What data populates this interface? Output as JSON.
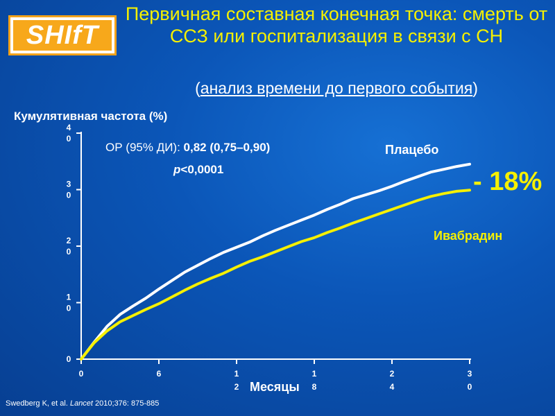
{
  "logo": {
    "text": "SHIfT"
  },
  "title": "Первичная составная конечная точка: смерть от ССЗ или госпитализация в связи с СН",
  "subtitle": {
    "open": "(",
    "text": "анализ времени до первого события",
    "close": ")"
  },
  "annotations": {
    "hr_label": "ОР (95% ДИ): ",
    "hr_value": "0,82 (0,75–0,90)",
    "p_letter": "p",
    "p_rest": "<0,0001",
    "placebo": "Плацебо",
    "ivabradine": "Ивабрадин",
    "reduction": "- 18%"
  },
  "citation": {
    "pre": "Swedberg K, et al. ",
    "journal": "Lancet",
    "post": " 2010;376: 875-885"
  },
  "colors": {
    "placebo": "#ffffff",
    "ivabradine": "#f5f000",
    "title": "#f5f000",
    "background": "#0b56b8"
  },
  "chart_data": {
    "type": "line",
    "xlabel": "Месяцы",
    "ylabel": "Кумулятивная частота (%)",
    "xlim": [
      0,
      30
    ],
    "ylim": [
      0,
      40
    ],
    "x_ticks": [
      0,
      6,
      12,
      18,
      24,
      30
    ],
    "y_ticks": [
      0,
      10,
      20,
      30,
      40
    ],
    "x_tick_labels": [
      "0",
      "6",
      "12",
      "18",
      "24",
      "30"
    ],
    "y_tick_labels": [
      "0",
      "10",
      "20",
      "30",
      "40"
    ],
    "grid": false,
    "series": [
      {
        "name": "Плацебо",
        "color": "#ffffff",
        "x": [
          0,
          1,
          2,
          3,
          4,
          5,
          6,
          7,
          8,
          9,
          10,
          11,
          12,
          13,
          14,
          15,
          16,
          17,
          18,
          19,
          20,
          21,
          22,
          23,
          24,
          25,
          26,
          27,
          28,
          29,
          30
        ],
        "y": [
          0,
          3.0,
          5.8,
          7.9,
          9.4,
          10.8,
          12.4,
          13.9,
          15.4,
          16.6,
          17.8,
          18.9,
          19.8,
          20.7,
          21.8,
          22.8,
          23.7,
          24.6,
          25.5,
          26.5,
          27.4,
          28.4,
          29.1,
          29.8,
          30.6,
          31.5,
          32.3,
          33.1,
          33.6,
          34.1,
          34.5
        ]
      },
      {
        "name": "Ивабрадин",
        "color": "#f5f000",
        "x": [
          0,
          1,
          2,
          3,
          4,
          5,
          6,
          7,
          8,
          9,
          10,
          11,
          12,
          13,
          14,
          15,
          16,
          17,
          18,
          19,
          20,
          21,
          22,
          23,
          24,
          25,
          26,
          27,
          28,
          29,
          30
        ],
        "y": [
          0,
          2.9,
          5.0,
          6.6,
          7.7,
          8.8,
          9.8,
          11.0,
          12.2,
          13.3,
          14.3,
          15.2,
          16.3,
          17.3,
          18.1,
          19.0,
          19.9,
          20.8,
          21.5,
          22.4,
          23.2,
          24.1,
          24.9,
          25.7,
          26.5,
          27.3,
          28.1,
          28.8,
          29.3,
          29.7,
          29.9
        ]
      }
    ]
  }
}
